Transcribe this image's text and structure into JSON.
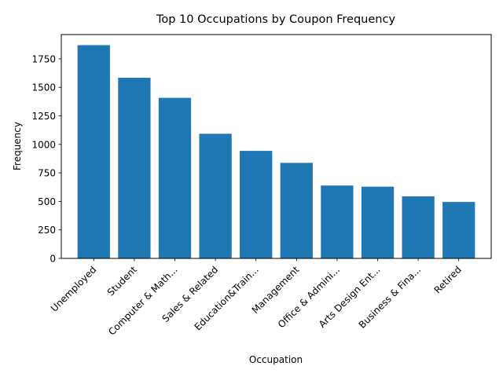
{
  "chart_data": {
    "type": "bar",
    "title": "Top 10 Occupations by Coupon Frequency",
    "xlabel": "Occupation",
    "ylabel": "Frequency",
    "categories": [
      "Unemployed",
      "Student",
      "Computer & Math...",
      "Sales & Related",
      "Education&Train...",
      "Management",
      "Office & Admini...",
      "Arts Design Ent...",
      "Business & Fina...",
      "Retired"
    ],
    "values": [
      1870,
      1584,
      1408,
      1093,
      943,
      838,
      639,
      629,
      544,
      495
    ],
    "ylim": [
      0,
      1963
    ],
    "yticks": [
      0,
      250,
      500,
      750,
      1000,
      1250,
      1500,
      1750
    ],
    "bar_color": "#1f77b4",
    "grid": false,
    "legend": "none"
  }
}
